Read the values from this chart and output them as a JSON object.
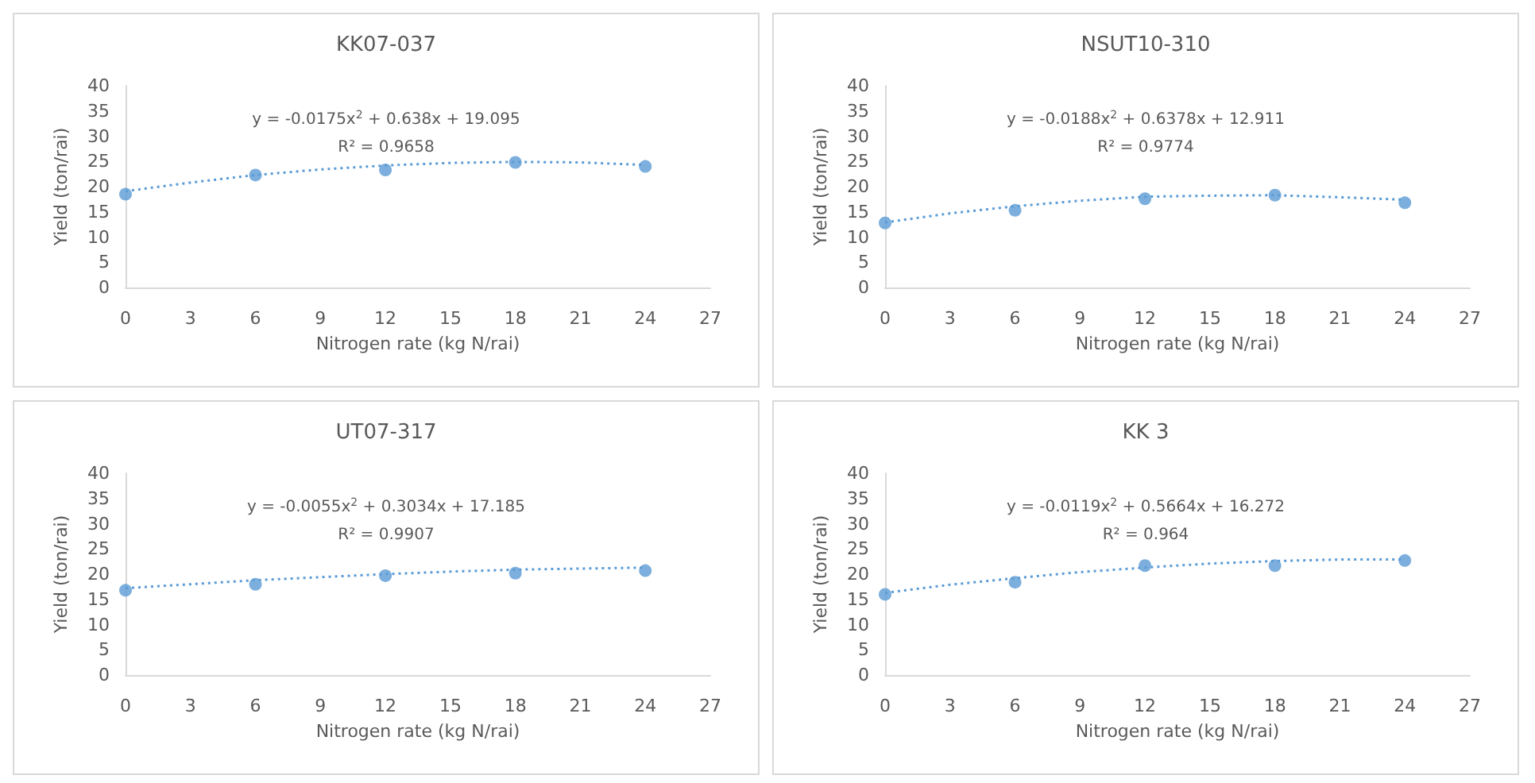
{
  "chart_data": [
    {
      "type": "scatter",
      "title": "KK07-037",
      "xlabel": "Nitrogen rate (kg N/rai)",
      "ylabel": "Yield (ton/rai)",
      "xlim": [
        0,
        27
      ],
      "xticks": [
        0,
        3,
        6,
        9,
        12,
        15,
        18,
        21,
        24,
        27
      ],
      "ylim": [
        0,
        40
      ],
      "yticks": [
        0,
        5,
        10,
        15,
        20,
        25,
        30,
        35,
        40
      ],
      "grid": false,
      "annotations": [
        "y = -0.0175x$^{2}$ + 0.638x + 19.095",
        "R² = 0.9658"
      ],
      "series": [
        {
          "color": "#5b9bd5",
          "marker": "circle",
          "x": [
            0,
            6,
            12,
            18,
            24
          ],
          "values": [
            18.5,
            22.3,
            23.3,
            24.8,
            24.0
          ]
        },
        {
          "type": "line",
          "color": "#5b9bd5",
          "marker": "none",
          "line_style": "dotted",
          "x": [
            0,
            3,
            6,
            9,
            12,
            15,
            18,
            21,
            24
          ],
          "values": [
            19.1,
            20.8,
            22.3,
            23.4,
            24.2,
            24.7,
            24.9,
            24.8,
            24.3
          ]
        }
      ]
    },
    {
      "type": "scatter",
      "title": "NSUT10-310",
      "xlabel": "Nitrogen rate (kg N/rai)",
      "ylabel": "Yield (ton/rai)",
      "xlim": [
        0,
        27
      ],
      "xticks": [
        0,
        3,
        6,
        9,
        12,
        15,
        18,
        21,
        24,
        27
      ],
      "ylim": [
        0,
        40
      ],
      "yticks": [
        0,
        5,
        10,
        15,
        20,
        25,
        30,
        35,
        40
      ],
      "grid": false,
      "annotations": [
        "y = -0.0188x$^{2}$ + 0.6378x + 12.911",
        "R² = 0.9774"
      ],
      "series": [
        {
          "color": "#5b9bd5",
          "marker": "circle",
          "x": [
            0,
            6,
            12,
            18,
            24
          ],
          "values": [
            12.8,
            15.3,
            17.6,
            18.3,
            16.8
          ]
        },
        {
          "type": "line",
          "color": "#5b9bd5",
          "marker": "none",
          "line_style": "dotted",
          "x": [
            0,
            3,
            6,
            9,
            12,
            15,
            18,
            21,
            24
          ],
          "values": [
            12.9,
            14.7,
            16.1,
            17.2,
            18.0,
            18.2,
            18.3,
            17.9,
            17.4
          ]
        }
      ]
    },
    {
      "type": "scatter",
      "title": "UT07-317",
      "xlabel": "Nitrogen rate (kg N/rai)",
      "ylabel": "Yield (ton/rai)",
      "xlim": [
        0,
        27
      ],
      "xticks": [
        0,
        3,
        6,
        9,
        12,
        15,
        18,
        21,
        24,
        27
      ],
      "ylim": [
        0,
        40
      ],
      "yticks": [
        0,
        5,
        10,
        15,
        20,
        25,
        30,
        35,
        40
      ],
      "grid": false,
      "annotations": [
        "y = -0.0055x$^{2}$ + 0.3034x + 17.185",
        "R² = 0.9907"
      ],
      "series": [
        {
          "color": "#5b9bd5",
          "marker": "circle",
          "x": [
            0,
            6,
            12,
            18,
            24
          ],
          "values": [
            16.8,
            18.0,
            19.7,
            20.2,
            20.7
          ]
        },
        {
          "type": "line",
          "color": "#5b9bd5",
          "marker": "none",
          "line_style": "dotted",
          "x": [
            0,
            3,
            6,
            9,
            12,
            15,
            18,
            21,
            24
          ],
          "values": [
            17.2,
            18.0,
            18.8,
            19.4,
            20.0,
            20.5,
            20.9,
            21.1,
            21.3
          ]
        }
      ]
    },
    {
      "type": "scatter",
      "title": "KK 3",
      "xlabel": "Nitrogen rate (kg N/rai)",
      "ylabel": "Yield (ton/rai)",
      "xlim": [
        0,
        27
      ],
      "xticks": [
        0,
        3,
        6,
        9,
        12,
        15,
        18,
        21,
        24,
        27
      ],
      "ylim": [
        0,
        40
      ],
      "yticks": [
        0,
        5,
        10,
        15,
        20,
        25,
        30,
        35,
        40
      ],
      "grid": false,
      "annotations": [
        "y = -0.0119x$^{2}$ + 0.5664x + 16.272",
        "R² = 0.964"
      ],
      "series": [
        {
          "color": "#5b9bd5",
          "marker": "circle",
          "x": [
            0,
            6,
            12,
            18,
            24
          ],
          "values": [
            16.0,
            18.4,
            21.7,
            21.7,
            22.7
          ]
        },
        {
          "type": "line",
          "color": "#5b9bd5",
          "marker": "none",
          "line_style": "dotted",
          "x": [
            0,
            3,
            6,
            9,
            12,
            15,
            18,
            21,
            24
          ],
          "values": [
            16.3,
            17.9,
            19.2,
            20.4,
            21.3,
            22.1,
            22.6,
            22.9,
            22.9
          ]
        }
      ]
    }
  ]
}
